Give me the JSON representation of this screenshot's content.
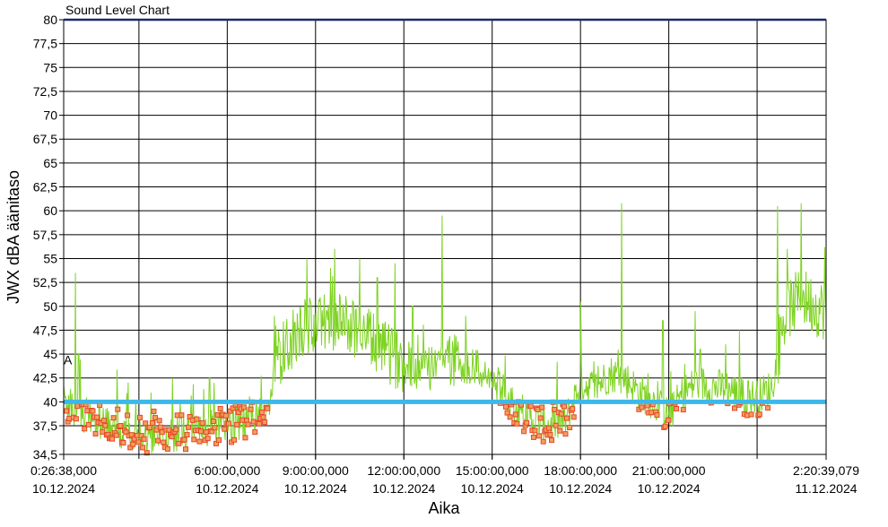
{
  "window": {
    "title": "Sound Level Chart"
  },
  "chart_data": {
    "type": "line",
    "title": "Sound Level Chart",
    "xlabel": "Aika",
    "ylabel": "JWX dBA äänitaso",
    "ylim": [
      34.5,
      80
    ],
    "yticks": [
      "80",
      "77,5",
      "75",
      "72,5",
      "70",
      "67,5",
      "65",
      "62,5",
      "60",
      "57,5",
      "55",
      "52,5",
      "50",
      "47,5",
      "45",
      "42,5",
      "40",
      "37,5",
      "34,5"
    ],
    "xlim_hours": [
      0.4439,
      26.3442
    ],
    "xticks": [
      {
        "hour": 0.4439,
        "time": "0:26:38,000",
        "date": "10.12.2024"
      },
      {
        "hour": 6,
        "time": "6:00:00,000",
        "date": "10.12.2024"
      },
      {
        "hour": 9,
        "time": "9:00:00,000",
        "date": "10.12.2024"
      },
      {
        "hour": 12,
        "time": "12:00:00,000",
        "date": "10.12.2024"
      },
      {
        "hour": 15,
        "time": "15:00:00,000",
        "date": "10.12.2024"
      },
      {
        "hour": 18,
        "time": "18:00:00,000",
        "date": "10.12.2024"
      },
      {
        "hour": 21,
        "time": "21:00:00,000",
        "date": "10.12.2024"
      },
      {
        "hour": 26.3442,
        "time": "2:20:39,079",
        "date": "11.12.2024"
      }
    ],
    "grid_hours": [
      3,
      6,
      9,
      12,
      15,
      18,
      21,
      24
    ],
    "grid": true,
    "threshold": {
      "value": 40,
      "color": "#3db8ea"
    },
    "marker_label": "A",
    "series": [
      {
        "color": "#7ed321",
        "marker_color": "#e8462a",
        "marker_fill": "#f0a05a",
        "profile_x": [
          0.44,
          0.8,
          1.2,
          2,
          3,
          4,
          5,
          6,
          7,
          7.4,
          7.7,
          8,
          8.5,
          9,
          9.5,
          10,
          10.5,
          11,
          11.5,
          12,
          12.5,
          13,
          13.5,
          14,
          14.5,
          15,
          15.5,
          16,
          16.5,
          17,
          17.5,
          18,
          18.5,
          19,
          19.5,
          20,
          20.5,
          21,
          21.5,
          22,
          22.5,
          23,
          23.5,
          24,
          24.5,
          25,
          25.5,
          26,
          26.34
        ],
        "profile_y": [
          40.5,
          39,
          38.5,
          37.5,
          36.5,
          36.5,
          37,
          37.5,
          38.5,
          39.5,
          44,
          46,
          47.5,
          48,
          48.5,
          48.2,
          47.5,
          46,
          45,
          44,
          43,
          44.5,
          44.5,
          44,
          43.5,
          42,
          40.5,
          39,
          38,
          37.5,
          38,
          42,
          41.5,
          43,
          42.5,
          41,
          40,
          38.5,
          41,
          42,
          41.5,
          41.5,
          40.5,
          40.5,
          41.5,
          49.5,
          51,
          50,
          49.5
        ],
        "spikes": [
          {
            "hour": 0.85,
            "value": 53.5
          },
          {
            "hour": 0.95,
            "value": 45
          },
          {
            "hour": 5.4,
            "value": 42.5
          },
          {
            "hour": 5.55,
            "value": 42
          },
          {
            "hour": 7.6,
            "value": 49
          },
          {
            "hour": 8.7,
            "value": 55
          },
          {
            "hour": 9.5,
            "value": 54
          },
          {
            "hour": 9.65,
            "value": 56
          },
          {
            "hour": 10.5,
            "value": 55
          },
          {
            "hour": 11.1,
            "value": 53
          },
          {
            "hour": 11.7,
            "value": 54.5
          },
          {
            "hour": 12.3,
            "value": 50
          },
          {
            "hour": 13.3,
            "value": 59.5
          },
          {
            "hour": 14.1,
            "value": 49
          },
          {
            "hour": 18,
            "value": 50.5
          },
          {
            "hour": 19.4,
            "value": 60.8
          },
          {
            "hour": 20.8,
            "value": 48.5
          },
          {
            "hour": 21.9,
            "value": 49.5
          },
          {
            "hour": 23.4,
            "value": 47.5
          },
          {
            "hour": 24.7,
            "value": 60.5
          },
          {
            "hour": 25.5,
            "value": 60.8
          },
          {
            "hour": 26.3,
            "value": 56.2
          }
        ]
      }
    ]
  }
}
